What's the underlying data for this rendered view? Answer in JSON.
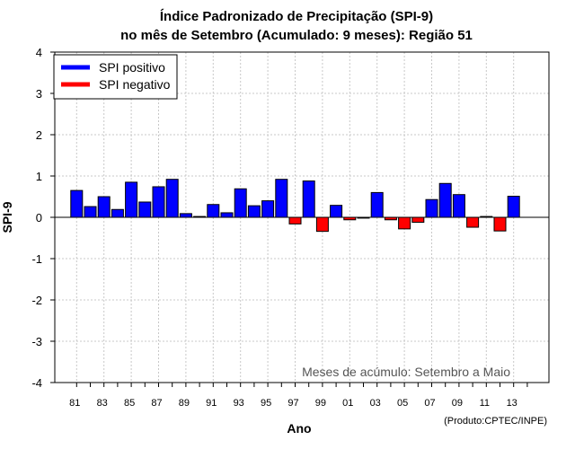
{
  "chart_data": {
    "type": "bar",
    "title_line1": "Índice Padronizado de Precipitação (SPI-9)",
    "title_line2": "no mês de Setembro (Acumulado: 9 meses): Região 51",
    "xlabel": "Ano",
    "ylabel": "SPI-9",
    "ylim": [
      -4,
      4
    ],
    "yticks": [
      -4,
      -3,
      -2,
      -1,
      0,
      1,
      2,
      3,
      4
    ],
    "grid": true,
    "legend_position": "top-left",
    "legend": [
      {
        "label": "SPI positivo",
        "color": "#0000ff"
      },
      {
        "label": "SPI negativo",
        "color": "#ff0000"
      }
    ],
    "annotation": "Meses de acúmulo: Setembro a Maio",
    "credit": "(Produto:CPTEC/INPE)",
    "positive_color": "#0000ff",
    "negative_color": "#ff0000",
    "xtick_labels": [
      "81",
      "83",
      "85",
      "87",
      "89",
      "91",
      "93",
      "95",
      "97",
      "99",
      "01",
      "03",
      "05",
      "07",
      "09",
      "11",
      "13"
    ],
    "years": [
      "81",
      "82",
      "83",
      "84",
      "85",
      "86",
      "87",
      "88",
      "89",
      "90",
      "91",
      "92",
      "93",
      "94",
      "95",
      "96",
      "97",
      "98",
      "99",
      "00",
      "01",
      "02",
      "03",
      "04",
      "05",
      "06",
      "07",
      "08",
      "09",
      "10",
      "11",
      "12",
      "13"
    ],
    "values": [
      0.65,
      0.26,
      0.5,
      0.19,
      0.85,
      0.37,
      0.74,
      0.92,
      0.09,
      0.02,
      0.31,
      0.11,
      0.69,
      0.28,
      0.4,
      0.92,
      -0.16,
      0.88,
      -0.34,
      0.29,
      -0.06,
      -0.02,
      0.6,
      -0.06,
      -0.28,
      -0.12,
      0.43,
      0.82,
      0.55,
      -0.24,
      0.02,
      -0.33,
      0.51
    ]
  }
}
